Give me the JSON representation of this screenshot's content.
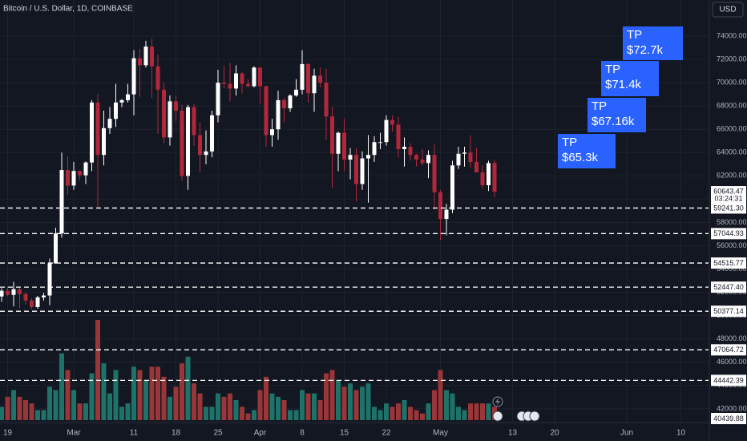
{
  "chart_data": {
    "type": "candlestick",
    "title": "Bitcoin / U.S. Dollar, 1D, COINBASE",
    "currency": "USD",
    "x": [
      "02-18",
      "02-19",
      "02-20",
      "02-21",
      "02-22",
      "02-23",
      "02-24",
      "02-25",
      "02-26",
      "02-27",
      "02-28",
      "02-29",
      "03-01",
      "03-02",
      "03-03",
      "03-04",
      "03-05",
      "03-06",
      "03-07",
      "03-08",
      "03-09",
      "03-10",
      "03-11",
      "03-12",
      "03-13",
      "03-14",
      "03-15",
      "03-16",
      "03-17",
      "03-18",
      "03-19",
      "03-20",
      "03-21",
      "03-22",
      "03-23",
      "03-24",
      "03-25",
      "03-26",
      "03-27",
      "03-28",
      "03-29",
      "03-30",
      "03-31",
      "04-01",
      "04-02",
      "04-03",
      "04-04",
      "04-05",
      "04-06",
      "04-07",
      "04-08",
      "04-09",
      "04-10",
      "04-11",
      "04-12",
      "04-13",
      "04-14",
      "04-15",
      "04-16",
      "04-17",
      "04-18",
      "04-19",
      "04-20",
      "04-21",
      "04-22",
      "04-23",
      "04-24",
      "04-25",
      "04-26",
      "04-27",
      "04-28",
      "04-29",
      "04-30",
      "05-01",
      "05-02",
      "05-03",
      "05-04",
      "05-05",
      "05-06",
      "05-07",
      "05-08",
      "05-09",
      "05-10"
    ],
    "open": [
      51650,
      52140,
      51780,
      52270,
      51850,
      51300,
      50740,
      51570,
      51730,
      54490,
      57060,
      62500,
      61170,
      62420,
      62050,
      63150,
      68300,
      63800,
      66100,
      66900,
      68300,
      68500,
      69000,
      72100,
      71500,
      73100,
      71400,
      69400,
      65300,
      68400,
      67600,
      62000,
      67900,
      65500,
      63800,
      64100,
      67200,
      70000,
      69900,
      69500,
      70800,
      69900,
      69700,
      71300,
      69700,
      65500,
      66000,
      68500,
      67800,
      68900,
      69400,
      71600,
      69100,
      70600,
      70000,
      67100,
      63900,
      65700,
      63400,
      63800,
      61300,
      63500,
      63800,
      64900,
      64900,
      66800,
      66400,
      64300,
      64500,
      63800,
      63400,
      63100,
      63800,
      60600,
      58300,
      59100,
      62900,
      63900,
      64000,
      63200,
      62300,
      61200,
      63100
    ],
    "high": [
      52350,
      52490,
      52900,
      52380,
      52000,
      51500,
      51700,
      51950,
      54900,
      57550,
      64000,
      63680,
      63200,
      62450,
      63250,
      68500,
      69000,
      67600,
      67900,
      69900,
      68600,
      69900,
      72800,
      72900,
      73600,
      73800,
      72400,
      70000,
      68900,
      68900,
      68100,
      68100,
      68200,
      66600,
      65900,
      67600,
      71100,
      71500,
      71700,
      71500,
      70900,
      70300,
      71400,
      71300,
      69700,
      66900,
      69300,
      68700,
      69000,
      70300,
      72800,
      71700,
      71200,
      71300,
      71200,
      67900,
      65800,
      66900,
      64400,
      64400,
      64100,
      65500,
      65400,
      65700,
      67200,
      67200,
      67100,
      65300,
      64800,
      63900,
      64300,
      64200,
      64700,
      60800,
      59600,
      63300,
      64500,
      64500,
      65500,
      64400,
      62900,
      63300,
      63400
    ],
    "low": [
      51200,
      51680,
      50800,
      50640,
      50940,
      50560,
      50600,
      51300,
      50900,
      54450,
      56700,
      60380,
      60800,
      61600,
      61300,
      62400,
      59200,
      62900,
      65600,
      66200,
      67900,
      68300,
      67200,
      68800,
      71300,
      68700,
      65600,
      64800,
      64600,
      66700,
      61600,
      60800,
      64600,
      62300,
      63000,
      63600,
      66600,
      69500,
      68400,
      68900,
      69100,
      69600,
      69600,
      68200,
      64500,
      64500,
      65100,
      66600,
      67500,
      68800,
      69000,
      68300,
      67500,
      69600,
      65100,
      61000,
      62400,
      62400,
      61700,
      59800,
      60800,
      59700,
      63200,
      64300,
      64600,
      65800,
      63600,
      62800,
      63300,
      62800,
      62900,
      61800,
      59100,
      56500,
      56900,
      58800,
      62600,
      62800,
      62700,
      62300,
      60900,
      60700,
      60200
    ],
    "close": [
      52140,
      51780,
      52270,
      51850,
      51300,
      50740,
      51570,
      51730,
      54490,
      57060,
      62500,
      61170,
      62420,
      62050,
      63150,
      68300,
      63800,
      66100,
      66900,
      68300,
      68500,
      69000,
      72100,
      71500,
      73100,
      71400,
      69400,
      65300,
      68400,
      67600,
      62000,
      67900,
      65500,
      63800,
      64100,
      67200,
      70000,
      69900,
      69500,
      70800,
      69900,
      69700,
      71300,
      69700,
      65500,
      66000,
      68500,
      67800,
      68900,
      69400,
      71600,
      69100,
      70600,
      70000,
      67100,
      63900,
      65700,
      63400,
      63800,
      61300,
      63500,
      63800,
      64900,
      64900,
      66800,
      66400,
      64300,
      64500,
      63800,
      63400,
      63100,
      63800,
      60600,
      58300,
      59100,
      62900,
      63900,
      64000,
      63200,
      62300,
      61200,
      63100,
      60643.47
    ],
    "volume": [
      4,
      7,
      9,
      7,
      6,
      5,
      3,
      3,
      10,
      9,
      20,
      15,
      9,
      5,
      5,
      14,
      30,
      17,
      8,
      15,
      4,
      5,
      16,
      15,
      12,
      16,
      16,
      13,
      7,
      10,
      17,
      19,
      11,
      8,
      4,
      4,
      8,
      7,
      8,
      6,
      4,
      2,
      3,
      9,
      13,
      8,
      7,
      6,
      3,
      3,
      9,
      8,
      8,
      6,
      14,
      15,
      12,
      10,
      11,
      9,
      10,
      11,
      4,
      3,
      5,
      4,
      5,
      6,
      4,
      3,
      2,
      5,
      9,
      15,
      9,
      8,
      4,
      3,
      5,
      5,
      5,
      5,
      4
    ],
    "up_color": "#ffffff",
    "down_color": "#b2283a",
    "volume_up_color": "#1e7369",
    "volume_down_color": "#9a3538",
    "ylim": [
      40960,
      77100
    ],
    "yticks": [
      {
        "value": 42000,
        "label": "42000.00"
      },
      {
        "value": 44000,
        "label": "44000.00"
      },
      {
        "value": 46000,
        "label": "46000.00"
      },
      {
        "value": 48000,
        "label": "48000.00"
      },
      {
        "value": 50000,
        "label": "50000.00"
      },
      {
        "value": 52000,
        "label": "52000.00"
      },
      {
        "value": 54000,
        "label": "54000.00"
      },
      {
        "value": 56000,
        "label": "56000.00"
      },
      {
        "value": 58000,
        "label": "58000.00"
      },
      {
        "value": 60000,
        "label": "60000.00"
      },
      {
        "value": 62000,
        "label": "62000.00"
      },
      {
        "value": 64000,
        "label": "64000.00"
      },
      {
        "value": 66000,
        "label": "66000.00"
      },
      {
        "value": 68000,
        "label": "68000.00"
      },
      {
        "value": 70000,
        "label": "70000.00"
      },
      {
        "value": 72000,
        "label": "72000.00"
      },
      {
        "value": 74000,
        "label": "74000.00"
      }
    ],
    "xticks": [
      {
        "value": "02-19",
        "label": "19"
      },
      {
        "value": "03-01",
        "label": "Mar"
      },
      {
        "value": "03-11",
        "label": "11"
      },
      {
        "value": "03-18",
        "label": "18"
      },
      {
        "value": "03-25",
        "label": "25"
      },
      {
        "value": "04-01",
        "label": "Apr"
      },
      {
        "value": "04-08",
        "label": "8"
      },
      {
        "value": "04-15",
        "label": "15"
      },
      {
        "value": "04-22",
        "label": "22"
      },
      {
        "value": "05-01",
        "label": "May"
      },
      {
        "value": "05-13",
        "label": "13"
      },
      {
        "value": "05-20",
        "label": "20"
      },
      {
        "value": "06-01",
        "label": "Jun"
      },
      {
        "value": "06-10",
        "label": "10"
      }
    ],
    "price_levels": [
      {
        "value": 59241.3,
        "label": "59241.30"
      },
      {
        "value": 57044.93,
        "label": "57044.93"
      },
      {
        "value": 54515.77,
        "label": "54515.77"
      },
      {
        "value": 52447.4,
        "label": "52447.40"
      },
      {
        "value": 50377.14,
        "label": "50377.14"
      },
      {
        "value": 47064.72,
        "label": "47064.72"
      },
      {
        "value": 44442.39,
        "label": "44442.39"
      },
      {
        "value": 40439.88,
        "label": "40439.88"
      }
    ],
    "last_price": {
      "value": 60643.47,
      "label": "60643.47"
    },
    "countdown": "03:24:31",
    "targets": [
      {
        "label": "TP",
        "value": 72700,
        "value_label": "$72.7k"
      },
      {
        "label": "TP",
        "value": 71400,
        "value_label": "$71.4k"
      },
      {
        "label": "TP",
        "value": 67160,
        "value_label": "$67.16k"
      },
      {
        "label": "TP",
        "value": 65300,
        "value_label": "$65.3k"
      }
    ]
  }
}
